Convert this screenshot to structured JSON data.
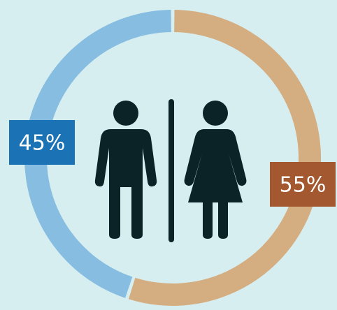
{
  "chart_data": {
    "type": "donut",
    "values": [
      55,
      45
    ],
    "value_labels": [
      "55%",
      "45%"
    ],
    "colors": [
      "#d4ad80",
      "#86bde0"
    ],
    "label_colors": [
      "#a3582f",
      "#1b73b6"
    ]
  }
}
